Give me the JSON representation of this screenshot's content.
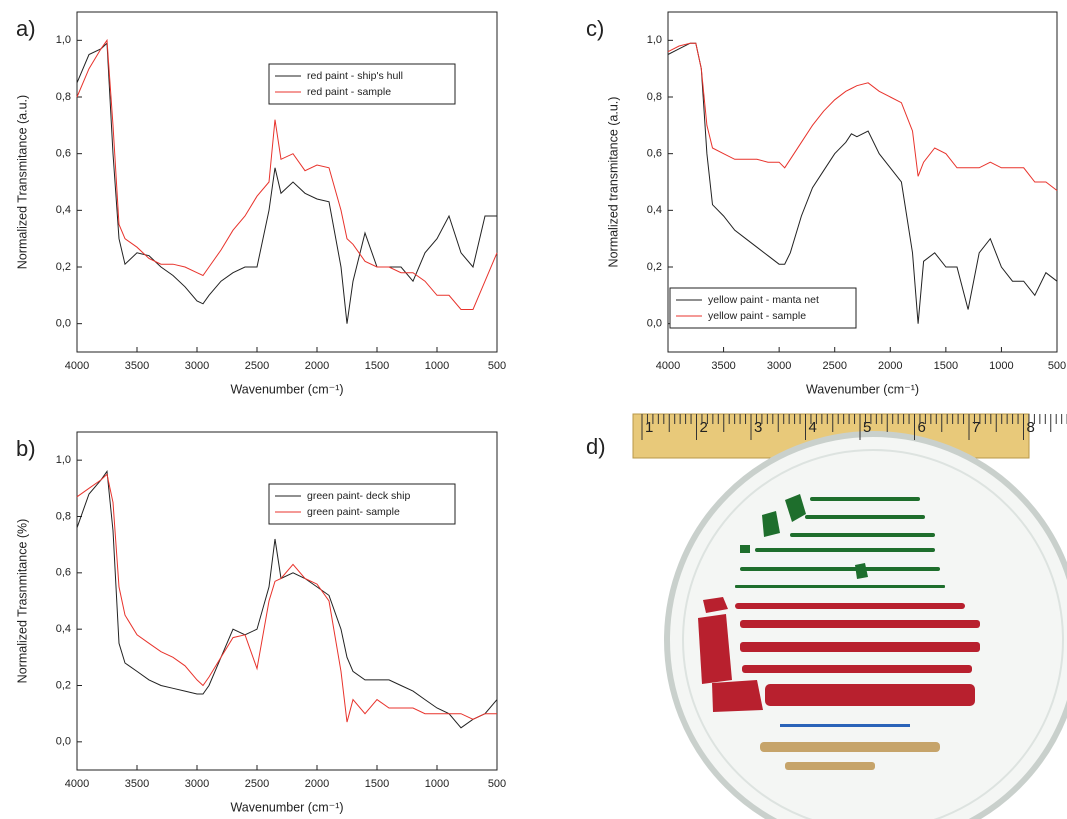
{
  "chart_data": [
    {
      "type": "line",
      "panel": "a)",
      "xlabel": "Wavenumber (cm⁻¹)",
      "ylabel": "Normalized Transmitance (a.u.)",
      "x": [
        4000,
        3900,
        3800,
        3750,
        3700,
        3650,
        3600,
        3500,
        3400,
        3300,
        3200,
        3100,
        3000,
        2950,
        2900,
        2800,
        2700,
        2600,
        2500,
        2400,
        2350,
        2300,
        2200,
        2100,
        2000,
        1900,
        1800,
        1750,
        1700,
        1600,
        1500,
        1400,
        1300,
        1200,
        1100,
        1000,
        900,
        800,
        700,
        600,
        500
      ],
      "series": [
        {
          "name": "red paint - ship's hull",
          "color": "#222222",
          "values": [
            0.85,
            0.95,
            0.97,
            0.99,
            0.6,
            0.3,
            0.21,
            0.25,
            0.24,
            0.2,
            0.17,
            0.13,
            0.08,
            0.07,
            0.1,
            0.15,
            0.18,
            0.2,
            0.2,
            0.4,
            0.55,
            0.46,
            0.5,
            0.46,
            0.44,
            0.43,
            0.2,
            0.0,
            0.15,
            0.32,
            0.2,
            0.2,
            0.2,
            0.15,
            0.25,
            0.3,
            0.38,
            0.25,
            0.2,
            0.38,
            0.38
          ]
        },
        {
          "name": "red paint - sample",
          "color": "#e8332c",
          "values": [
            0.8,
            0.9,
            0.97,
            1.0,
            0.7,
            0.35,
            0.3,
            0.27,
            0.23,
            0.21,
            0.21,
            0.2,
            0.18,
            0.17,
            0.2,
            0.26,
            0.33,
            0.38,
            0.45,
            0.5,
            0.72,
            0.58,
            0.6,
            0.54,
            0.56,
            0.55,
            0.4,
            0.3,
            0.28,
            0.22,
            0.2,
            0.2,
            0.18,
            0.18,
            0.15,
            0.1,
            0.1,
            0.05,
            0.05,
            0.15,
            0.25
          ]
        }
      ],
      "xlim": [
        4000,
        500
      ],
      "xticks": [
        4000,
        3500,
        3000,
        2500,
        2000,
        1500,
        1000,
        500
      ],
      "ylim": [
        -0.1,
        1.1
      ],
      "yticks": [
        {
          "value": 0,
          "label": "0,0"
        },
        {
          "value": 0.2,
          "label": "0,2"
        },
        {
          "value": 0.4,
          "label": "0,4"
        },
        {
          "value": 0.6,
          "label": "0,6"
        },
        {
          "value": 0.8,
          "label": "0,8"
        },
        {
          "value": 1.0,
          "label": "1,0"
        }
      ],
      "legend": "upper right"
    },
    {
      "type": "line",
      "panel": "b)",
      "xlabel": "Wavenumber (cm⁻¹)",
      "ylabel": "Normalized Trasnmitance (%)",
      "x": [
        4000,
        3900,
        3800,
        3750,
        3700,
        3650,
        3600,
        3500,
        3400,
        3300,
        3200,
        3100,
        3000,
        2950,
        2900,
        2800,
        2700,
        2600,
        2500,
        2400,
        2350,
        2300,
        2200,
        2100,
        2000,
        1900,
        1800,
        1750,
        1700,
        1600,
        1500,
        1400,
        1300,
        1200,
        1100,
        1000,
        900,
        800,
        700,
        600,
        500
      ],
      "series": [
        {
          "name": "green paint- deck ship",
          "color": "#222222",
          "values": [
            0.76,
            0.88,
            0.93,
            0.96,
            0.75,
            0.35,
            0.28,
            0.25,
            0.22,
            0.2,
            0.19,
            0.18,
            0.17,
            0.17,
            0.2,
            0.3,
            0.4,
            0.38,
            0.4,
            0.55,
            0.72,
            0.58,
            0.6,
            0.58,
            0.55,
            0.52,
            0.4,
            0.3,
            0.25,
            0.22,
            0.22,
            0.22,
            0.2,
            0.18,
            0.15,
            0.12,
            0.1,
            0.05,
            0.08,
            0.1,
            0.15
          ]
        },
        {
          "name": "green paint- sample",
          "color": "#e8332c",
          "values": [
            0.87,
            0.9,
            0.93,
            0.95,
            0.85,
            0.55,
            0.45,
            0.38,
            0.35,
            0.32,
            0.3,
            0.27,
            0.22,
            0.2,
            0.23,
            0.3,
            0.37,
            0.38,
            0.26,
            0.5,
            0.57,
            0.58,
            0.63,
            0.58,
            0.56,
            0.5,
            0.25,
            0.07,
            0.15,
            0.1,
            0.15,
            0.12,
            0.12,
            0.12,
            0.1,
            0.1,
            0.1,
            0.1,
            0.08,
            0.1,
            0.1
          ]
        }
      ],
      "xlim": [
        4000,
        500
      ],
      "xticks": [
        4000,
        3500,
        3000,
        2500,
        2000,
        1500,
        1000,
        500
      ],
      "ylim": [
        -0.1,
        1.1
      ],
      "yticks": [
        {
          "value": 0,
          "label": "0,0"
        },
        {
          "value": 0.2,
          "label": "0,2"
        },
        {
          "value": 0.4,
          "label": "0,4"
        },
        {
          "value": 0.6,
          "label": "0,6"
        },
        {
          "value": 0.8,
          "label": "0,8"
        },
        {
          "value": 1.0,
          "label": "1,0"
        }
      ],
      "legend": "upper right"
    },
    {
      "type": "line",
      "panel": "c)",
      "xlabel": "Wavenumber (cm⁻¹)",
      "ylabel": "Normalized transmitance (a.u.)",
      "x": [
        4000,
        3900,
        3800,
        3750,
        3700,
        3650,
        3600,
        3500,
        3400,
        3300,
        3200,
        3100,
        3000,
        2950,
        2900,
        2800,
        2700,
        2600,
        2500,
        2400,
        2350,
        2300,
        2200,
        2100,
        2000,
        1900,
        1800,
        1750,
        1700,
        1600,
        1500,
        1400,
        1300,
        1200,
        1100,
        1000,
        900,
        800,
        700,
        600,
        500
      ],
      "series": [
        {
          "name": "yellow paint - manta net",
          "color": "#222222",
          "values": [
            0.95,
            0.97,
            0.99,
            0.99,
            0.9,
            0.6,
            0.42,
            0.38,
            0.33,
            0.3,
            0.27,
            0.24,
            0.21,
            0.21,
            0.25,
            0.38,
            0.48,
            0.54,
            0.6,
            0.64,
            0.67,
            0.66,
            0.68,
            0.6,
            0.55,
            0.5,
            0.25,
            0.0,
            0.22,
            0.25,
            0.2,
            0.2,
            0.05,
            0.25,
            0.3,
            0.2,
            0.15,
            0.15,
            0.1,
            0.18,
            0.15
          ]
        },
        {
          "name": "yellow paint - sample",
          "color": "#e8332c",
          "values": [
            0.96,
            0.98,
            0.99,
            0.99,
            0.9,
            0.7,
            0.62,
            0.6,
            0.58,
            0.58,
            0.58,
            0.57,
            0.57,
            0.55,
            0.58,
            0.64,
            0.7,
            0.75,
            0.79,
            0.82,
            0.83,
            0.84,
            0.85,
            0.82,
            0.8,
            0.78,
            0.68,
            0.52,
            0.57,
            0.62,
            0.6,
            0.55,
            0.55,
            0.55,
            0.57,
            0.55,
            0.55,
            0.55,
            0.5,
            0.5,
            0.47
          ]
        }
      ],
      "xlim": [
        4000,
        500
      ],
      "xticks": [
        4000,
        3500,
        3000,
        2500,
        2000,
        1500,
        1000,
        500
      ],
      "ylim": [
        -0.1,
        1.1
      ],
      "yticks": [
        {
          "value": 0,
          "label": "0,0"
        },
        {
          "value": 0.2,
          "label": "0,2"
        },
        {
          "value": 0.4,
          "label": "0,4"
        },
        {
          "value": 0.6,
          "label": "0,6"
        },
        {
          "value": 0.8,
          "label": "0,8"
        },
        {
          "value": 1.0,
          "label": "1,0"
        }
      ],
      "legend": "lower left"
    }
  ],
  "photo": {
    "panel": "d)",
    "ruler_labels": [
      "1",
      "2",
      "3",
      "4",
      "5",
      "6",
      "7",
      "8"
    ]
  }
}
